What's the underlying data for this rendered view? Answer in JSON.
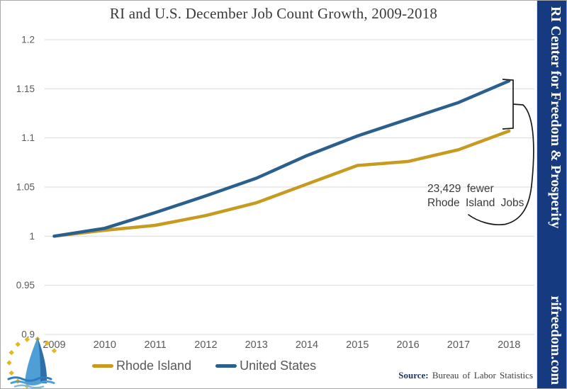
{
  "title": "RI and U.S. December Job Count Growth, 2009-2018",
  "chart_data": {
    "type": "line",
    "x": [
      2009,
      2010,
      2011,
      2012,
      2013,
      2014,
      2015,
      2016,
      2017,
      2018
    ],
    "series": [
      {
        "name": "Rhode Island",
        "color": "#C79B20",
        "values": [
          1.0,
          1.006,
          1.011,
          1.021,
          1.034,
          1.053,
          1.072,
          1.076,
          1.088,
          1.107
        ]
      },
      {
        "name": "United States",
        "color": "#2B5F8E",
        "values": [
          1.0,
          1.008,
          1.024,
          1.041,
          1.059,
          1.082,
          1.102,
          1.119,
          1.136,
          1.158
        ]
      }
    ],
    "ylim": [
      0.9,
      1.2
    ],
    "yticks": [
      {
        "v": 1.2,
        "label": "1.2"
      },
      {
        "v": 1.15,
        "label": "1.15"
      },
      {
        "v": 1.1,
        "label": "1.1"
      },
      {
        "v": 1.05,
        "label": "1.05"
      },
      {
        "v": 1.0,
        "label": "1"
      },
      {
        "v": 0.95,
        "label": "0.95"
      },
      {
        "v": 0.9,
        "label": "0.9"
      }
    ],
    "grid": true,
    "grid_color": "#D9D9D9",
    "tick_label_color": "#595959",
    "legend_position": "bottom"
  },
  "legend": {
    "items": [
      {
        "label": "Rhode Island",
        "color": "#C79B20"
      },
      {
        "label": "United States",
        "color": "#2B5F8E"
      }
    ]
  },
  "annotation": {
    "line1": "23,429 fewer",
    "line2": "Rhode Island Jobs"
  },
  "source": {
    "label": "Source:",
    "text": "Bureau of Labor Statistics"
  },
  "sidebar": {
    "org": "RI Center for Freedom & Prosperity",
    "site": "rifreedom.com",
    "bg": "#153A80",
    "text_color": "#FFFFFF"
  },
  "logo": {
    "name": "sailboat-logo",
    "colors": {
      "sail_light": "#4E9FD6",
      "sail_dark": "#2F6EA8",
      "dots": "#E4B61F",
      "wave1": "#2F7CC0",
      "wave2": "#4E9FD6",
      "wave3": "#7FB9E0"
    }
  }
}
